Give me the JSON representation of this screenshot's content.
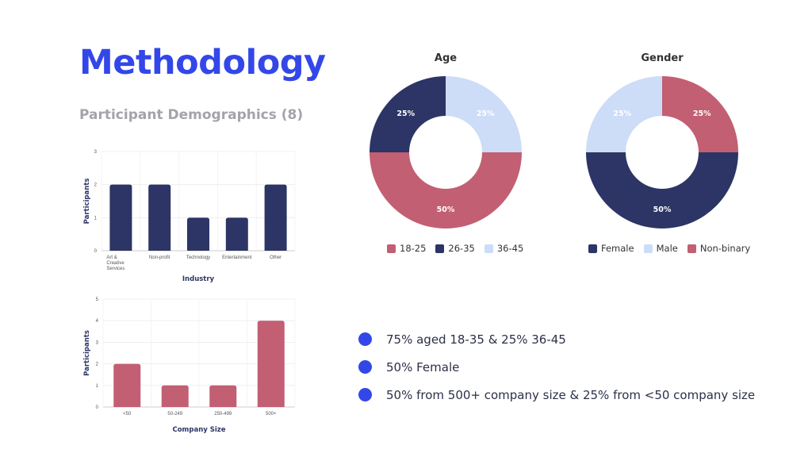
{
  "slide": {
    "title": "Methodology",
    "subtitle": "Participant Demographics (8)"
  },
  "colors": {
    "accent": "#3347e8",
    "navy": "#2c3565",
    "rose": "#c25f73",
    "light_blue": "#cddcf7"
  },
  "chart_data": [
    {
      "type": "bar",
      "categories": [
        "Art & Creative Services",
        "Non-profit",
        "Technology",
        "Entertainment",
        "Other"
      ],
      "category_lines": [
        [
          "Art &",
          "Creative",
          "Services"
        ],
        [
          "Non-profit"
        ],
        [
          "Technology"
        ],
        [
          "Entertainment"
        ],
        [
          "Other"
        ]
      ],
      "values": [
        2,
        2,
        1,
        1,
        2
      ],
      "xlabel": "Industry",
      "ylabel": "Participants",
      "ylim": [
        0,
        3
      ],
      "yticks": [
        0,
        1,
        2,
        3
      ],
      "grid": true,
      "color": "#2c3565"
    },
    {
      "type": "bar",
      "categories": [
        "<50",
        "50-249",
        "250-499",
        "500+"
      ],
      "category_lines": [
        [
          "<50"
        ],
        [
          "50-249"
        ],
        [
          "250-499"
        ],
        [
          "500+"
        ]
      ],
      "values": [
        2,
        1,
        1,
        4
      ],
      "xlabel": "Company Size",
      "ylabel": "Participants",
      "ylim": [
        0,
        5
      ],
      "yticks": [
        0,
        1,
        2,
        3,
        4,
        5
      ],
      "grid": true,
      "color": "#c25f73"
    },
    {
      "type": "pie",
      "title": "Age",
      "donut": true,
      "slices": [
        {
          "label": "36-45",
          "value": 25,
          "text": "25%",
          "color": "#cddcf7",
          "text_color": "#ffffff"
        },
        {
          "label": "18-25",
          "value": 50,
          "text": "50%",
          "color": "#c25f73",
          "text_color": "#ffffff"
        },
        {
          "label": "26-35",
          "value": 25,
          "text": "25%",
          "color": "#2c3565",
          "text_color": "#ffffff"
        }
      ],
      "legend": [
        {
          "label": "18-25",
          "color": "#c25f73"
        },
        {
          "label": "26-35",
          "color": "#2c3565"
        },
        {
          "label": "36-45",
          "color": "#cddcf7"
        }
      ],
      "legend_position": "bottom"
    },
    {
      "type": "pie",
      "title": "Gender",
      "donut": true,
      "slices": [
        {
          "label": "Non-binary",
          "value": 25,
          "text": "25%",
          "color": "#c25f73",
          "text_color": "#ffffff"
        },
        {
          "label": "Female",
          "value": 50,
          "text": "50%",
          "color": "#2c3565",
          "text_color": "#ffffff"
        },
        {
          "label": "Male",
          "value": 25,
          "text": "25%",
          "color": "#cddcf7",
          "text_color": "#ffffff"
        }
      ],
      "legend": [
        {
          "label": "Female",
          "color": "#2c3565"
        },
        {
          "label": "Male",
          "color": "#cddcf7"
        },
        {
          "label": "Non-binary",
          "color": "#c25f73"
        }
      ],
      "legend_position": "bottom"
    }
  ],
  "bullets": [
    "75% aged 18-35 & 25% 36-45",
    "50% Female",
    "50% from 500+ company size & 25% from <50 company size"
  ]
}
